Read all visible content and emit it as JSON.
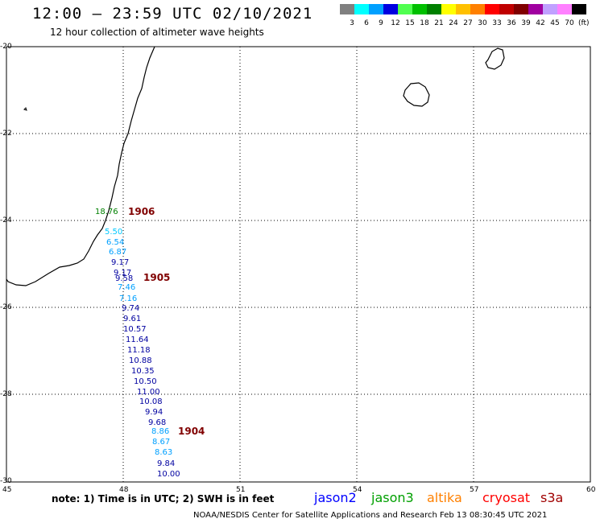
{
  "title": "12:00 – 23:59 UTC 02/10/2021",
  "subtitle": "12 hour collection of altimeter wave heights",
  "scale": {
    "unit": "(ft)",
    "items": [
      {
        "label": "3",
        "color": "#808080"
      },
      {
        "label": "6",
        "color": "#00ffff"
      },
      {
        "label": "9",
        "color": "#00a0ff"
      },
      {
        "label": "12",
        "color": "#0000e0"
      },
      {
        "label": "15",
        "color": "#50ff50"
      },
      {
        "label": "18",
        "color": "#00c000"
      },
      {
        "label": "21",
        "color": "#008000"
      },
      {
        "label": "24",
        "color": "#ffff00"
      },
      {
        "label": "27",
        "color": "#ffc000"
      },
      {
        "label": "30",
        "color": "#ff8000"
      },
      {
        "label": "33",
        "color": "#ff0000"
      },
      {
        "label": "36",
        "color": "#c00000"
      },
      {
        "label": "39",
        "color": "#800000"
      },
      {
        "label": "42",
        "color": "#a000a0"
      },
      {
        "label": "45",
        "color": "#c0a0ff"
      },
      {
        "label": "70",
        "color": "#ff80ff"
      },
      {
        "label": "",
        "color": "#000000"
      }
    ]
  },
  "lat_labels": [
    "-20",
    "-22",
    "-24",
    "-26",
    "-28",
    "-30"
  ],
  "lon_labels": [
    "45",
    "48",
    "51",
    "54",
    "57",
    "60"
  ],
  "wave_heights": [
    {
      "value": "18.76",
      "color": "#008000"
    },
    {
      "value": "5.50",
      "color": "#00c8ff"
    },
    {
      "value": "6.54",
      "color": "#00a0ff"
    },
    {
      "value": "6.87",
      "color": "#00a0ff"
    },
    {
      "value": "9.17",
      "color": "#0000a0"
    },
    {
      "value": "9.17",
      "color": "#0000a0"
    },
    {
      "value": "9.58",
      "color": "#0000a0"
    },
    {
      "value": "7.46",
      "color": "#00a0ff"
    },
    {
      "value": "7.16",
      "color": "#00a0ff"
    },
    {
      "value": "9.74",
      "color": "#0000a0"
    },
    {
      "value": "9.61",
      "color": "#0000a0"
    },
    {
      "value": "10.57",
      "color": "#0000a0"
    },
    {
      "value": "11.64",
      "color": "#0000a0"
    },
    {
      "value": "11.18",
      "color": "#0000a0"
    },
    {
      "value": "10.88",
      "color": "#0000a0"
    },
    {
      "value": "10.35",
      "color": "#0000a0"
    },
    {
      "value": "10.50",
      "color": "#0000a0"
    },
    {
      "value": "11.00",
      "color": "#0000a0"
    },
    {
      "value": "10.08",
      "color": "#0000a0"
    },
    {
      "value": "9.94",
      "color": "#0000a0"
    },
    {
      "value": "9.68",
      "color": "#0000a0"
    },
    {
      "value": "8.86",
      "color": "#00a0ff"
    },
    {
      "value": "8.67",
      "color": "#00a0ff"
    },
    {
      "value": "8.63",
      "color": "#00a0ff"
    },
    {
      "value": "9.84",
      "color": "#0000a0"
    },
    {
      "value": "10.00",
      "color": "#0000a0"
    }
  ],
  "pass_times": [
    "1906",
    "1905",
    "1904"
  ],
  "note": "note: 1) Time is in UTC; 2) SWH is in feet",
  "satellites": [
    {
      "name": "jason2",
      "color": "#0000ff"
    },
    {
      "name": "jason3",
      "color": "#00a000"
    },
    {
      "name": "altika",
      "color": "#ff8000"
    },
    {
      "name": "cryosat",
      "color": "#ff0000"
    },
    {
      "name": "s3a",
      "color": "#a00000"
    }
  ],
  "credit": "NOAA/NESDIS Center for Satellite Applications and Research    Feb 13 08:30:45 UTC 2021"
}
